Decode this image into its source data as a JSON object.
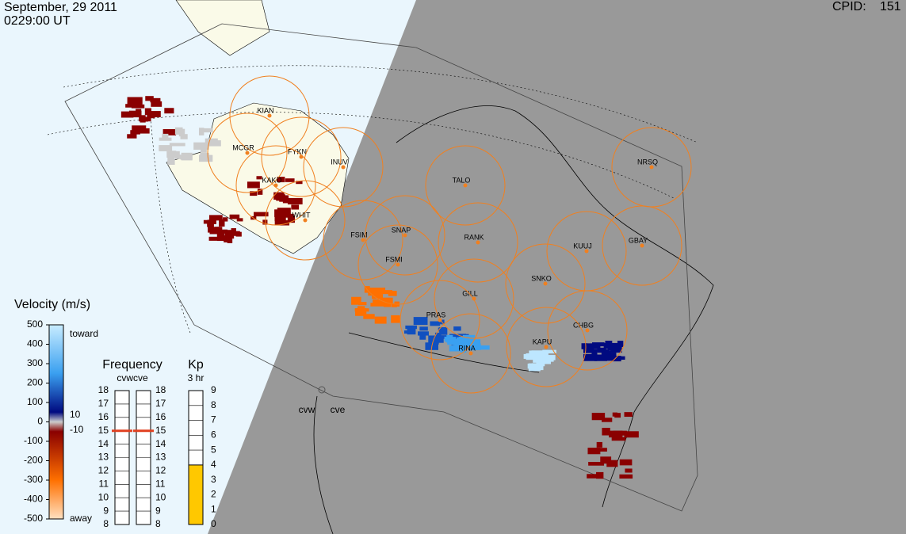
{
  "header": {
    "date": "September, 29 2011",
    "time": "0229:00 UT",
    "cpid_label": "CPID:",
    "cpid": "151"
  },
  "stations": [
    "KIAN",
    "MCGR",
    "FYKN",
    "INUV",
    "KAKO",
    "WHIT",
    "FSIM",
    "SNAP",
    "FSMI",
    "TALO",
    "RANK",
    "GILL",
    "PRAS",
    "RINA",
    "SNKO",
    "KUUJ",
    "GBAY",
    "NRSQ",
    "CHBG",
    "KAPU"
  ],
  "radars": [
    "cvw",
    "cve"
  ],
  "velocity_scale": {
    "title": "Velocity (m/s)",
    "ticks": [
      500,
      400,
      300,
      200,
      100,
      0,
      -100,
      -200,
      -300,
      -400,
      -500
    ],
    "ylim": [
      -500,
      500
    ],
    "toward": "toward",
    "away": "away",
    "zero_band_labels": [
      {
        "value": 10,
        "label": "10"
      },
      {
        "value": -10,
        "label": "-10"
      }
    ]
  },
  "frequency_scale": {
    "title": "Frequency",
    "subtitle": "cvwcve",
    "ticks": [
      18,
      17,
      16,
      15,
      14,
      13,
      12,
      11,
      10,
      9,
      8
    ],
    "ylim": [
      8,
      18
    ],
    "values": [
      15,
      15
    ]
  },
  "kp_scale": {
    "title": "Kp",
    "subtitle": "3 hr",
    "ticks": [
      9,
      8,
      7,
      6,
      5,
      4,
      3,
      2,
      1,
      0
    ],
    "ylim": [
      0,
      9
    ],
    "value": 4
  }
}
